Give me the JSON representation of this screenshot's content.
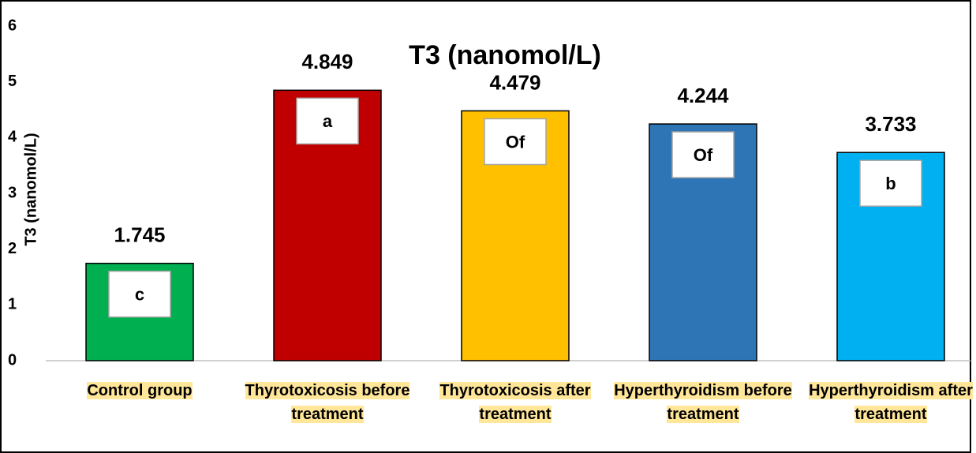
{
  "chart_data": {
    "type": "bar",
    "title": "T3 (nanomol/L)",
    "y_label": "T3 (nanomol/L)",
    "categories": [
      "Control group",
      "Thyrotoxicosis before treatment",
      "Thyrotoxicosis after treatment",
      "Hyperthyroidism before treatment",
      "Hyperthyroidism after treatment"
    ],
    "values": [
      1.745,
      4.849,
      4.479,
      4.244,
      3.733
    ],
    "annotations": [
      "c",
      "a",
      "Of",
      "Of",
      "b"
    ],
    "colors": [
      "#00b050",
      "#c00000",
      "#ffc000",
      "#2e75b6",
      "#00b0f0"
    ],
    "ylim": [
      0,
      6
    ],
    "yticks": [
      0,
      1,
      2,
      3,
      4,
      5,
      6
    ],
    "grid": false
  }
}
